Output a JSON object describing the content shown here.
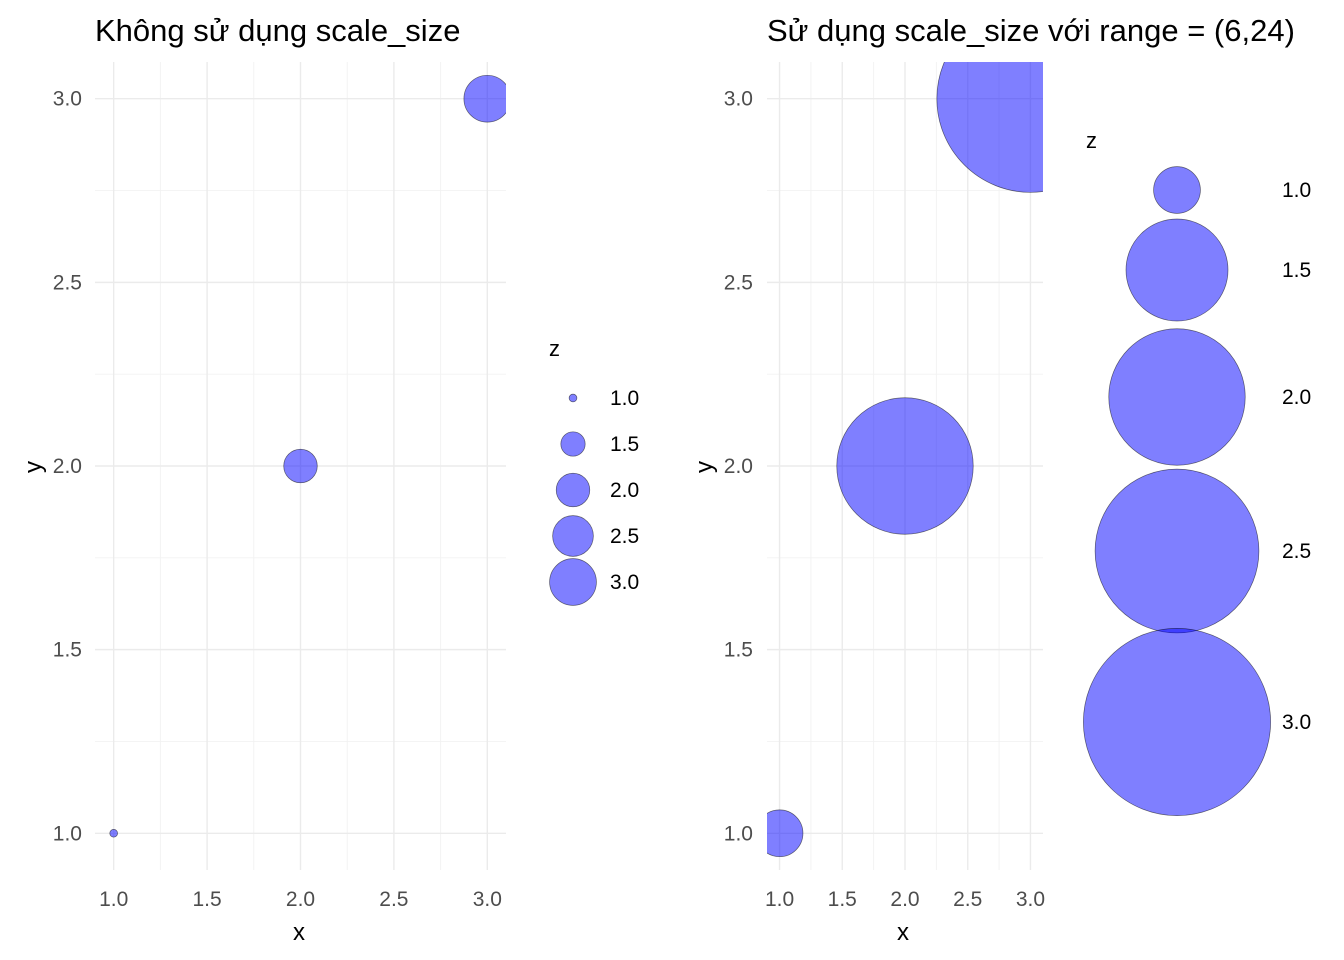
{
  "chart_data": [
    {
      "type": "scatter",
      "title": "Không sử dụng scale_size",
      "xlabel": "x",
      "ylabel": "y",
      "x": [
        1,
        2,
        3
      ],
      "y": [
        1,
        2,
        3
      ],
      "z": [
        1,
        2,
        3
      ],
      "xlim": [
        0.9,
        3.1
      ],
      "ylim": [
        0.9,
        3.1
      ],
      "x_ticks": [
        "1.0",
        "1.5",
        "2.0",
        "2.5",
        "3.0"
      ],
      "y_ticks": [
        "1.0",
        "1.5",
        "2.0",
        "2.5",
        "3.0"
      ],
      "size_range": [
        1,
        6
      ],
      "grid": true,
      "legend": {
        "title": "z",
        "position": "right",
        "entries": [
          "1.0",
          "1.5",
          "2.0",
          "2.5",
          "3.0"
        ]
      },
      "point_color": "#0000ff",
      "point_alpha": 0.5
    },
    {
      "type": "scatter",
      "title": "Sử dụng scale_size với range = (6,24)",
      "xlabel": "x",
      "ylabel": "y",
      "x": [
        1,
        2,
        3
      ],
      "y": [
        1,
        2,
        3
      ],
      "z": [
        1,
        2,
        3
      ],
      "xlim": [
        0.9,
        3.1
      ],
      "ylim": [
        0.9,
        3.1
      ],
      "x_ticks": [
        "1.0",
        "1.5",
        "2.0",
        "2.5",
        "3.0"
      ],
      "y_ticks": [
        "1.0",
        "1.5",
        "2.0",
        "2.5",
        "3.0"
      ],
      "size_range": [
        6,
        24
      ],
      "grid": true,
      "legend": {
        "title": "z",
        "position": "right",
        "entries": [
          "1.0",
          "1.5",
          "2.0",
          "2.5",
          "3.0"
        ]
      },
      "point_color": "#0000ff",
      "point_alpha": 0.5
    }
  ]
}
